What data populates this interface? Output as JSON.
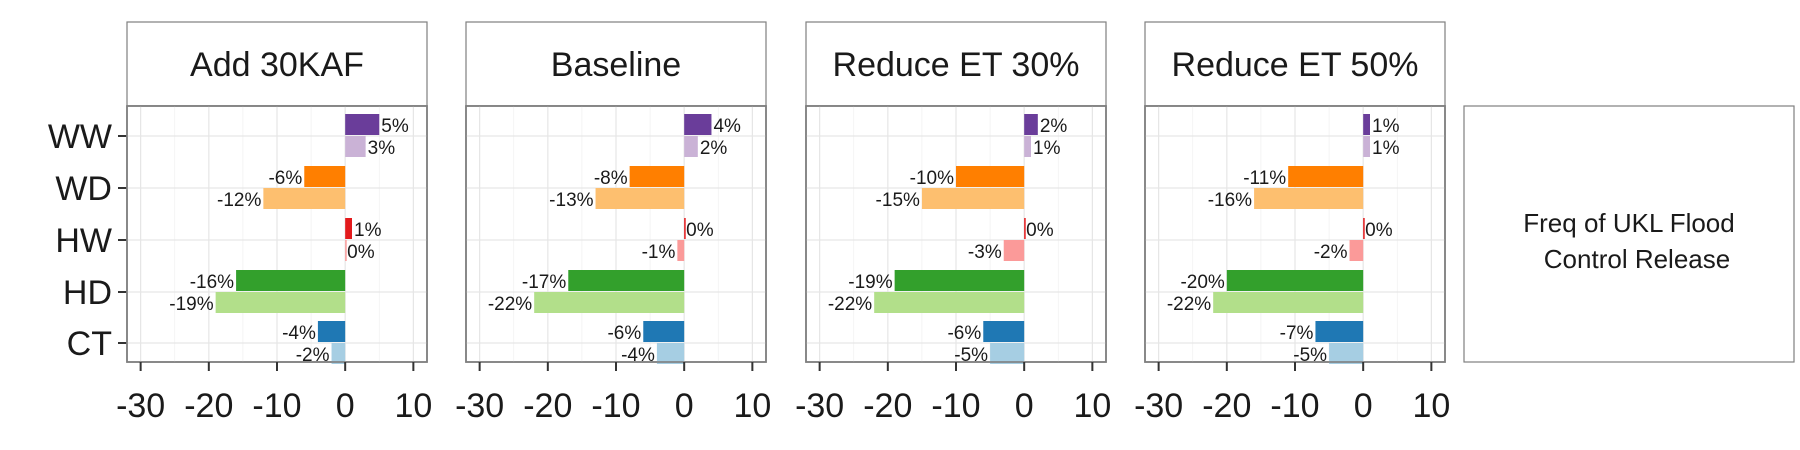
{
  "chart_data": {
    "type": "bar",
    "orientation": "horizontal",
    "facets": [
      "Add 30KAF",
      "Baseline",
      "Reduce ET 30%",
      "Reduce ET 50%"
    ],
    "categories": [
      "WW",
      "WD",
      "HW",
      "HD",
      "CT"
    ],
    "xlim": [
      -32,
      12
    ],
    "xticks": [
      -30,
      -20,
      -10,
      0,
      10
    ],
    "grid": true,
    "legend_text": "Freq of UKL Flood\nControl Release",
    "legend_placement": "right",
    "colors": {
      "WW": [
        "#6a3d9a",
        "#cab2d6"
      ],
      "WD": [
        "#ff7f00",
        "#fdbf6f"
      ],
      "HW": [
        "#e31a1c",
        "#fb9a99"
      ],
      "HD": [
        "#33a02c",
        "#b2df8a"
      ],
      "CT": [
        "#1f78b4",
        "#a6cee3"
      ]
    },
    "panels": [
      {
        "facet": "Add 30KAF",
        "rows": [
          {
            "category": "WW",
            "values": [
              5,
              3
            ],
            "labels": [
              "5%",
              "3%"
            ]
          },
          {
            "category": "WD",
            "values": [
              -6,
              -12
            ],
            "labels": [
              "-6%",
              "-12%"
            ]
          },
          {
            "category": "HW",
            "values": [
              1,
              0
            ],
            "labels": [
              "1%",
              "0%"
            ]
          },
          {
            "category": "HD",
            "values": [
              -16,
              -19
            ],
            "labels": [
              "-16%",
              "-19%"
            ]
          },
          {
            "category": "CT",
            "values": [
              -4,
              -2
            ],
            "labels": [
              "-4%",
              "-2%"
            ]
          }
        ]
      },
      {
        "facet": "Baseline",
        "rows": [
          {
            "category": "WW",
            "values": [
              4,
              2
            ],
            "labels": [
              "4%",
              "2%"
            ]
          },
          {
            "category": "WD",
            "values": [
              -8,
              -13
            ],
            "labels": [
              "-8%",
              "-13%"
            ]
          },
          {
            "category": "HW",
            "values": [
              0,
              -1
            ],
            "labels": [
              "0%",
              "-1%"
            ]
          },
          {
            "category": "HD",
            "values": [
              -17,
              -22
            ],
            "labels": [
              "-17%",
              "-22%"
            ]
          },
          {
            "category": "CT",
            "values": [
              -6,
              -4
            ],
            "labels": [
              "-6%",
              "-4%"
            ]
          }
        ]
      },
      {
        "facet": "Reduce ET 30%",
        "rows": [
          {
            "category": "WW",
            "values": [
              2,
              1
            ],
            "labels": [
              "2%",
              "1%"
            ]
          },
          {
            "category": "WD",
            "values": [
              -10,
              -15
            ],
            "labels": [
              "-10%",
              "-15%"
            ]
          },
          {
            "category": "HW",
            "values": [
              0,
              -3
            ],
            "labels": [
              "0%",
              "-3%"
            ]
          },
          {
            "category": "HD",
            "values": [
              -19,
              -22
            ],
            "labels": [
              "-19%",
              "-22%"
            ]
          },
          {
            "category": "CT",
            "values": [
              -6,
              -5
            ],
            "labels": [
              "-6%",
              "-5%"
            ]
          }
        ]
      },
      {
        "facet": "Reduce ET 50%",
        "rows": [
          {
            "category": "WW",
            "values": [
              1,
              1
            ],
            "labels": [
              "1%",
              "1%"
            ]
          },
          {
            "category": "WD",
            "values": [
              -11,
              -16
            ],
            "labels": [
              "-11%",
              "-16%"
            ]
          },
          {
            "category": "HW",
            "values": [
              0,
              -2
            ],
            "labels": [
              "0%",
              "-2%"
            ]
          },
          {
            "category": "HD",
            "values": [
              -20,
              -22
            ],
            "labels": [
              "-20%",
              "-22%"
            ]
          },
          {
            "category": "CT",
            "values": [
              -7,
              -5
            ],
            "labels": [
              "-7%",
              "-5%"
            ]
          }
        ]
      }
    ]
  }
}
